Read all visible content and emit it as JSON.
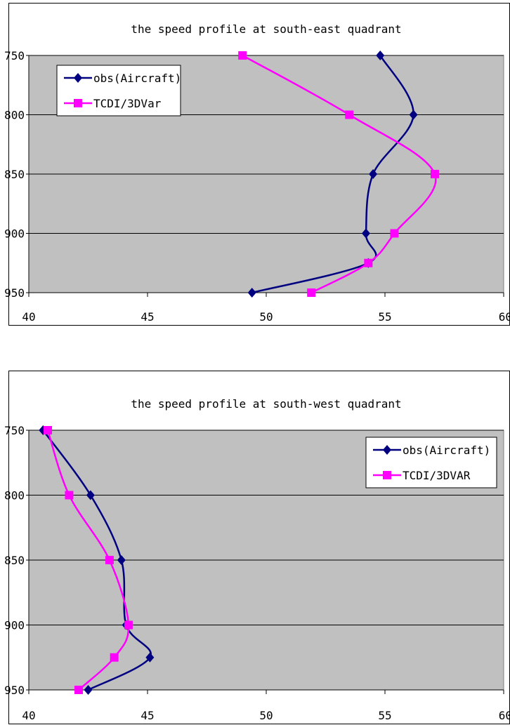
{
  "chart_data": [
    {
      "type": "line",
      "title": "the speed profile at south-east quadrant",
      "xlim": [
        40,
        60
      ],
      "ylim": [
        950,
        750
      ],
      "y_reversed": true,
      "x_ticks": [
        "40",
        "45",
        "50",
        "55",
        "60"
      ],
      "y_ticks": [
        "750",
        "800",
        "850",
        "900",
        "950"
      ],
      "grid": "horizontal",
      "plot_background": "#c0c0c0",
      "legend_position": "top-left",
      "series": [
        {
          "name": "obs(Aircraft)",
          "color": "#000080",
          "marker": "diamond",
          "points": [
            [
              54.8,
              750
            ],
            [
              56.2,
              800
            ],
            [
              54.5,
              850
            ],
            [
              54.2,
              900
            ],
            [
              54.3,
              925
            ],
            [
              49.4,
              950
            ]
          ]
        },
        {
          "name": "TCDI/3DVar",
          "color": "#ff00ff",
          "marker": "square",
          "points": [
            [
              49.0,
              750
            ],
            [
              53.5,
              800
            ],
            [
              57.1,
              850
            ],
            [
              55.4,
              900
            ],
            [
              54.3,
              925
            ],
            [
              51.9,
              950
            ]
          ]
        }
      ]
    },
    {
      "type": "line",
      "title": "the speed profile at south-west quadrant",
      "xlim": [
        40,
        60
      ],
      "ylim": [
        950,
        750
      ],
      "y_reversed": true,
      "x_ticks": [
        "40",
        "45",
        "50",
        "55",
        "60"
      ],
      "y_ticks": [
        "750",
        "800",
        "850",
        "900",
        "950"
      ],
      "grid": "horizontal",
      "plot_background": "#c0c0c0",
      "legend_position": "top-right",
      "series": [
        {
          "name": "obs(Aircraft)",
          "color": "#000080",
          "marker": "diamond",
          "points": [
            [
              40.6,
              750
            ],
            [
              42.6,
              800
            ],
            [
              43.9,
              850
            ],
            [
              44.1,
              900
            ],
            [
              45.1,
              925
            ],
            [
              42.5,
              950
            ]
          ]
        },
        {
          "name": "TCDI/3DVAR",
          "color": "#ff00ff",
          "marker": "square",
          "points": [
            [
              40.8,
              750
            ],
            [
              41.7,
              800
            ],
            [
              43.4,
              850
            ],
            [
              44.2,
              900
            ],
            [
              43.6,
              925
            ],
            [
              42.1,
              950
            ]
          ]
        }
      ]
    }
  ]
}
